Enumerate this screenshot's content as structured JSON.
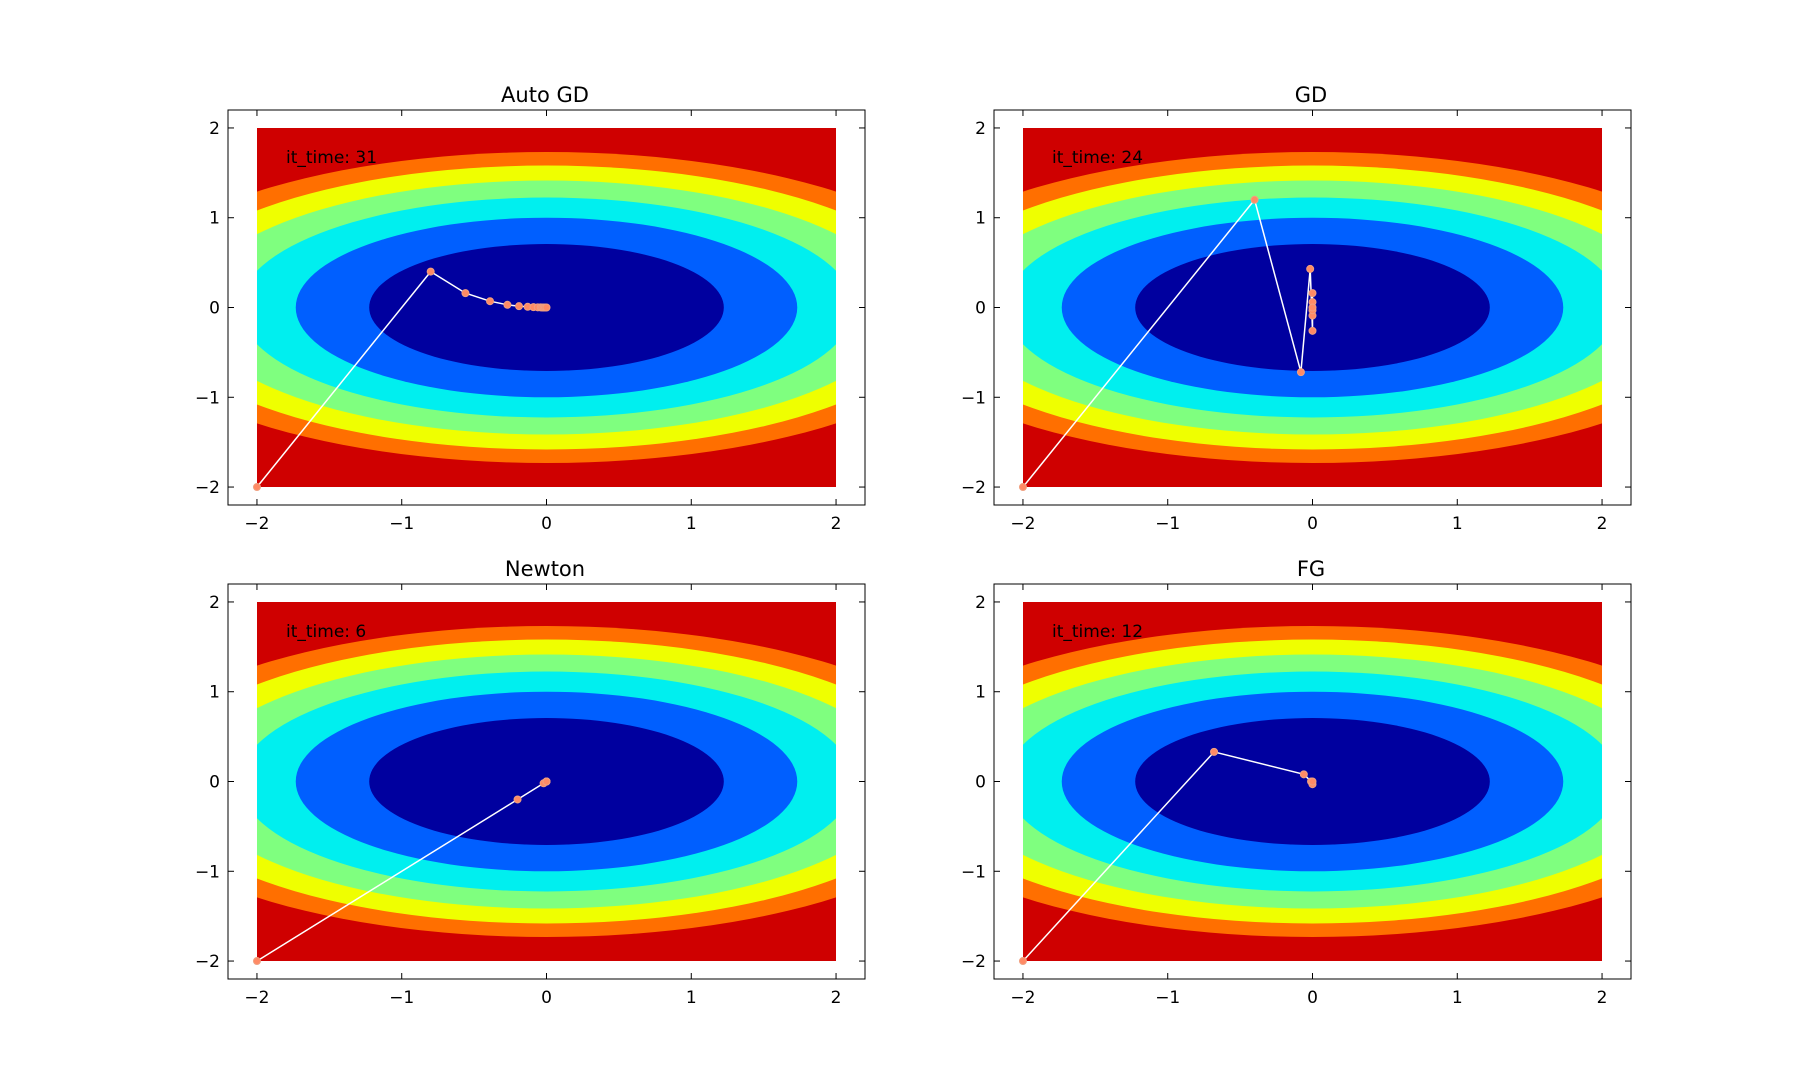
{
  "chart_data": [
    {
      "type": "contour",
      "title": "Auto GD",
      "annotation": "it_time: 31",
      "xlim": [
        -2.2,
        2.2
      ],
      "ylim": [
        -2.2,
        2.2
      ],
      "xticks": [
        -2,
        -1,
        0,
        1,
        2
      ],
      "yticks": [
        -2,
        -1,
        0,
        1,
        2
      ],
      "tick_labels": [
        "−2",
        "−1",
        "0",
        "1",
        "2"
      ],
      "contour_levels": [
        0.5,
        1.0,
        1.5,
        2.0,
        2.5,
        3.0
      ],
      "path": [
        [
          -2,
          -2
        ],
        [
          -0.8,
          0.4
        ],
        [
          -0.56,
          0.16
        ],
        [
          -0.39,
          0.07
        ],
        [
          -0.27,
          0.03
        ],
        [
          -0.19,
          0.015
        ],
        [
          -0.13,
          0.008
        ],
        [
          -0.09,
          0.004
        ],
        [
          -0.06,
          0.002
        ],
        [
          -0.04,
          0.001
        ],
        [
          -0.03,
          0.0
        ],
        [
          -0.02,
          0.0
        ],
        [
          -0.01,
          0.0
        ],
        [
          0.0,
          0.0
        ]
      ]
    },
    {
      "type": "contour",
      "title": "GD",
      "annotation": "it_time: 24",
      "xlim": [
        -2.2,
        2.2
      ],
      "ylim": [
        -2.2,
        2.2
      ],
      "xticks": [
        -2,
        -1,
        0,
        1,
        2
      ],
      "yticks": [
        -2,
        -1,
        0,
        1,
        2
      ],
      "tick_labels": [
        "−2",
        "−1",
        "0",
        "1",
        "2"
      ],
      "contour_levels": [
        0.5,
        1.0,
        1.5,
        2.0,
        2.5,
        3.0
      ],
      "path": [
        [
          -2,
          -2
        ],
        [
          -0.4,
          1.2
        ],
        [
          -0.08,
          -0.72
        ],
        [
          -0.016,
          0.43
        ],
        [
          0.0,
          -0.26
        ],
        [
          0.0,
          0.16
        ],
        [
          0.0,
          -0.09
        ],
        [
          0.0,
          0.06
        ],
        [
          0.0,
          -0.03
        ],
        [
          0.0,
          0.0
        ]
      ]
    },
    {
      "type": "contour",
      "title": "Newton",
      "annotation": "it_time: 6",
      "xlim": [
        -2.2,
        2.2
      ],
      "ylim": [
        -2.2,
        2.2
      ],
      "xticks": [
        -2,
        -1,
        0,
        1,
        2
      ],
      "yticks": [
        -2,
        -1,
        0,
        1,
        2
      ],
      "tick_labels": [
        "−2",
        "−1",
        "0",
        "1",
        "2"
      ],
      "contour_levels": [
        0.5,
        1.0,
        1.5,
        2.0,
        2.5,
        3.0
      ],
      "path": [
        [
          -2,
          -2
        ],
        [
          -0.2,
          -0.2
        ],
        [
          -0.02,
          -0.02
        ],
        [
          0.0,
          0.0
        ],
        [
          0.0,
          0.0
        ],
        [
          0.0,
          0.0
        ]
      ]
    },
    {
      "type": "contour",
      "title": "FG",
      "annotation": "it_time: 12",
      "xlim": [
        -2.2,
        2.2
      ],
      "ylim": [
        -2.2,
        2.2
      ],
      "xticks": [
        -2,
        -1,
        0,
        1,
        2
      ],
      "yticks": [
        -2,
        -1,
        0,
        1,
        2
      ],
      "tick_labels": [
        "−2",
        "−1",
        "0",
        "1",
        "2"
      ],
      "contour_levels": [
        0.5,
        1.0,
        1.5,
        2.0,
        2.5,
        3.0
      ],
      "path": [
        [
          -2,
          -2
        ],
        [
          -0.68,
          0.33
        ],
        [
          -0.06,
          0.08
        ],
        [
          -0.01,
          0.0
        ],
        [
          0.0,
          -0.03
        ],
        [
          0.0,
          0.0
        ]
      ]
    }
  ],
  "colors": {
    "bands": [
      "#00009f",
      "#005fff",
      "#00efef",
      "#7fff7f",
      "#efff00",
      "#ff6f00",
      "#cf0000"
    ],
    "path_line": "#ffffff",
    "marker_fill": "#ff8a65",
    "marker_edge": "#f0a080"
  }
}
